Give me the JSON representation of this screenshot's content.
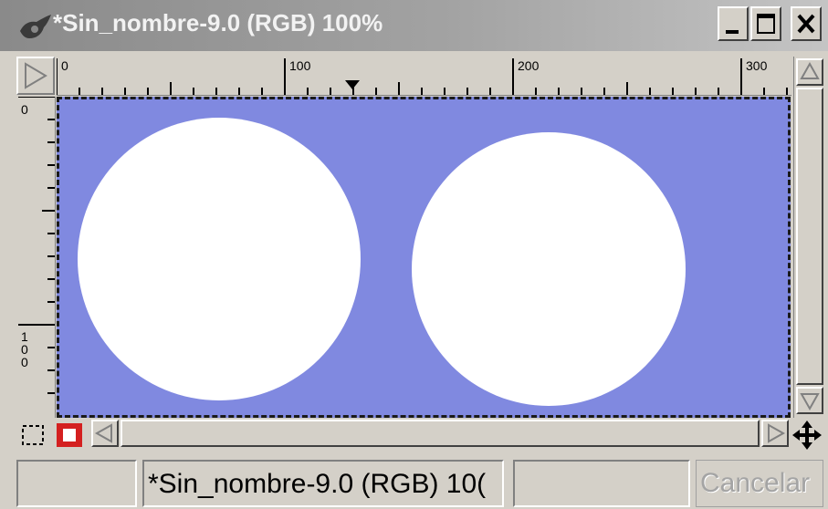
{
  "window": {
    "title": "*Sin_nombre-9.0 (RGB) 100%"
  },
  "title_buttons": {
    "minimize_icon": "minimize-icon",
    "maximize_icon": "maximize-icon",
    "close_icon": "close-icon"
  },
  "rulers": {
    "horizontal_labels": [
      "0",
      "100",
      "200",
      "300"
    ],
    "vertical_labels": [
      "0",
      "100"
    ]
  },
  "canvas": {
    "background_color": "#8089e0",
    "shape_color": "#ffffff"
  },
  "status": {
    "image_label": "*Sin_nombre-9.0 (RGB) 10(",
    "cancel_label": "Cancelar"
  }
}
